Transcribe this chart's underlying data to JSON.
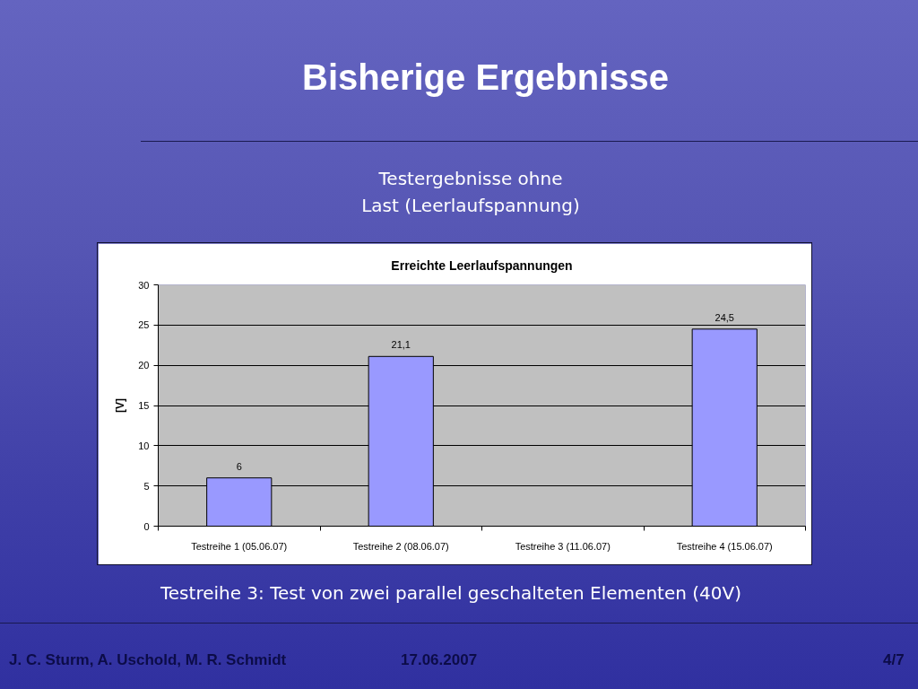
{
  "chart_data": {
    "type": "bar",
    "title": "Erreichte Leerlaufspannungen",
    "subtitle": "Testergebnisse ohne\nLast (Leerlaufspannung)",
    "ylabel": "[V]",
    "categories": [
      "Testreihe 1 (05.06.07)",
      "Testreihe 2 (08.06.07)",
      "Testreihe 3 (11.06.07)",
      "Testreihe 4 (15.06.07)"
    ],
    "values": [
      6,
      21.1,
      null,
      24.5
    ],
    "value_labels": [
      "6",
      "21,1",
      null,
      "24,5"
    ],
    "color": "#9999ff",
    "ylim": [
      0,
      30
    ],
    "yticks": [
      0,
      5,
      10,
      15,
      20,
      25,
      30
    ],
    "grid": "y",
    "annotations": [
      "Bisherige Ergebnisse",
      "Testreihe 3: Test von zwei parallel geschalteten Elementen (40V)",
      "J. C. Sturm, A. Uschold, M. R. Schmidt",
      "17.06.2007",
      "4/7"
    ]
  }
}
